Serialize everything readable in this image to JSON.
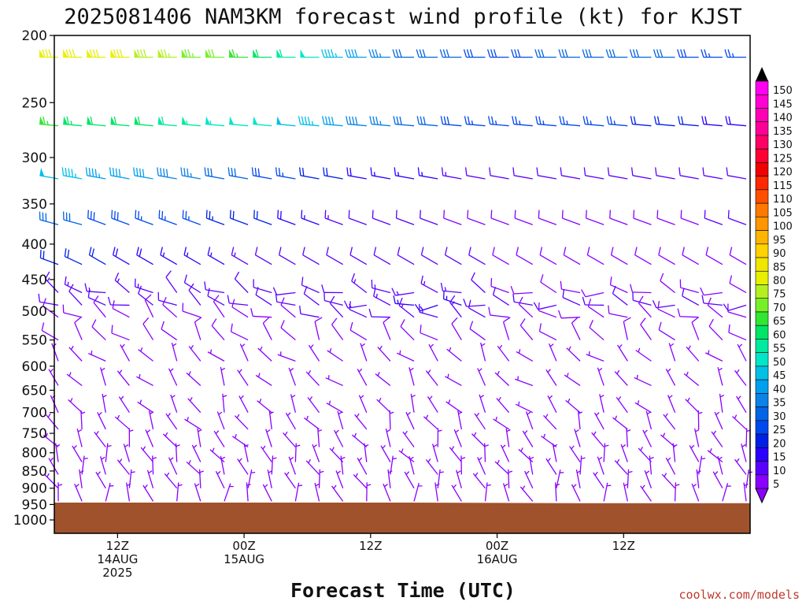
{
  "chart_data": {
    "type": "wind_barb_time_height",
    "title": "2025081406 NAM3KM forecast wind profile (kt) for KJST",
    "xlabel": "Forecast Time (UTC)",
    "ylabel": "",
    "credit": "coolwx.com/models",
    "y_axis": {
      "units": "hPa",
      "range": [
        1000,
        200
      ],
      "ticks": [
        200,
        250,
        300,
        350,
        400,
        450,
        500,
        550,
        600,
        650,
        700,
        750,
        800,
        850,
        900,
        950,
        1000
      ]
    },
    "x_axis": {
      "range": [
        "2025-08-14T06Z",
        "2025-08-16T12Z"
      ],
      "ticks": [
        {
          "time": "2025-08-14T12Z",
          "lines": [
            "12Z",
            "14AUG",
            "2025"
          ]
        },
        {
          "time": "2025-08-15T00Z",
          "lines": [
            "00Z",
            "15AUG"
          ]
        },
        {
          "time": "2025-08-15T12Z",
          "lines": [
            "12Z"
          ]
        },
        {
          "time": "2025-08-16T00Z",
          "lines": [
            "00Z",
            "16AUG"
          ]
        },
        {
          "time": "2025-08-16T12Z",
          "lines": [
            "12Z"
          ]
        }
      ]
    },
    "colorbar": {
      "units": "kt",
      "labels": [
        5,
        10,
        15,
        20,
        25,
        30,
        35,
        40,
        45,
        50,
        55,
        60,
        65,
        70,
        75,
        80,
        85,
        90,
        95,
        100,
        105,
        110,
        115,
        120,
        125,
        130,
        135,
        140,
        145,
        150
      ],
      "colors": [
        "#8a00ff",
        "#5a00ff",
        "#2a00ff",
        "#0020e6",
        "#0048f0",
        "#0064e6",
        "#0a82e8",
        "#00a0f0",
        "#00c0e6",
        "#00e6c8",
        "#00eaa0",
        "#00e664",
        "#32e632",
        "#78f028",
        "#b4f020",
        "#e6f000",
        "#f0e600",
        "#ffd200",
        "#ffb400",
        "#ff9600",
        "#ff7800",
        "#ff5000",
        "#ff2800",
        "#f00000",
        "#ff0032",
        "#ff0064",
        "#ff0096",
        "#ff00b4",
        "#ff00d2",
        "#ff00f0"
      ]
    },
    "wind_profile": {
      "note_levels_hpa": [
        215,
        270,
        322,
        375,
        428,
        470,
        490,
        510,
        550,
        590,
        640,
        700,
        740,
        785,
        825,
        860,
        900,
        940,
        1000
      ],
      "levels": [
        {
          "p": 215,
          "speed": [
            82,
            82,
            82,
            80,
            78,
            76,
            74,
            70,
            66,
            62,
            58,
            50,
            45,
            40,
            35,
            32,
            30,
            30,
            28,
            28,
            28,
            30,
            30,
            30,
            32,
            32,
            30,
            28,
            25,
            25
          ],
          "dir": [
            270,
            270,
            270,
            270,
            270,
            270,
            270,
            270,
            270,
            270,
            270,
            270,
            270,
            270,
            270,
            270,
            270,
            270,
            270,
            270,
            270,
            270,
            270,
            270,
            270,
            270,
            270,
            270,
            270,
            270
          ]
        },
        {
          "p": 270,
          "speed": [
            66,
            64,
            62,
            62,
            60,
            58,
            56,
            54,
            52,
            50,
            48,
            45,
            40,
            38,
            35,
            32,
            30,
            28,
            26,
            25,
            25,
            25,
            25,
            25,
            25,
            22,
            20,
            20,
            18,
            18
          ],
          "dir": [
            275,
            275,
            275,
            275,
            275,
            275,
            275,
            275,
            275,
            275,
            275,
            275,
            275,
            275,
            275,
            275,
            275,
            275,
            275,
            275,
            275,
            275,
            275,
            275,
            275,
            275,
            275,
            275,
            275,
            275
          ]
        },
        {
          "p": 322,
          "speed": [
            48,
            46,
            44,
            42,
            40,
            38,
            35,
            32,
            30,
            28,
            26,
            22,
            20,
            18,
            16,
            15,
            15,
            14,
            12,
            12,
            12,
            10,
            10,
            10,
            10,
            10,
            10,
            10,
            10,
            10
          ],
          "dir": [
            280,
            280,
            280,
            280,
            280,
            280,
            280,
            280,
            280,
            280,
            280,
            280,
            280,
            280,
            280,
            280,
            280,
            280,
            280,
            280,
            280,
            280,
            280,
            280,
            280,
            280,
            280,
            280,
            280,
            280
          ]
        },
        {
          "p": 375,
          "speed": [
            32,
            30,
            28,
            28,
            26,
            25,
            25,
            24,
            22,
            20,
            18,
            16,
            14,
            12,
            10,
            10,
            10,
            8,
            8,
            8,
            8,
            8,
            8,
            8,
            8,
            8,
            8,
            8,
            10,
            10
          ],
          "dir": [
            285,
            285,
            290,
            290,
            290,
            290,
            290,
            290,
            290,
            290,
            290,
            290,
            290,
            290,
            290,
            290,
            290,
            290,
            290,
            290,
            290,
            290,
            290,
            290,
            290,
            290,
            290,
            290,
            290,
            290
          ]
        },
        {
          "p": 428,
          "speed": [
            22,
            20,
            20,
            18,
            18,
            16,
            16,
            15,
            14,
            12,
            12,
            10,
            10,
            10,
            10,
            10,
            10,
            10,
            10,
            8,
            8,
            8,
            8,
            8,
            8,
            8,
            8,
            8,
            8,
            8
          ],
          "dir": [
            290,
            295,
            300,
            300,
            300,
            300,
            300,
            300,
            300,
            300,
            300,
            300,
            300,
            300,
            300,
            300,
            300,
            300,
            300,
            300,
            300,
            300,
            300,
            300,
            300,
            300,
            300,
            300,
            300,
            300
          ]
        },
        {
          "p": 490,
          "speed": [
            10,
            10,
            10,
            10,
            10,
            10,
            10,
            10,
            10,
            10,
            10,
            12,
            12,
            14,
            14,
            15,
            15,
            15,
            12,
            10,
            10,
            10,
            10,
            10,
            10,
            10,
            10,
            10,
            10,
            10
          ],
          "dir": [
            300,
            300,
            300,
            300,
            300,
            300,
            300,
            300,
            300,
            290,
            290,
            280,
            280,
            280,
            280,
            280,
            280,
            280,
            280,
            280,
            280,
            280,
            280,
            280,
            280,
            280,
            280,
            280,
            280,
            280
          ]
        },
        {
          "p": 550,
          "speed": [
            8,
            8,
            8,
            8,
            8,
            8,
            8,
            8,
            8,
            8,
            8,
            8,
            8,
            8,
            8,
            8,
            8,
            8,
            8,
            8,
            8,
            8,
            8,
            8,
            8,
            8,
            8,
            8,
            8,
            8
          ],
          "dir": [
            320,
            320,
            320,
            320,
            320,
            320,
            320,
            320,
            320,
            320,
            320,
            320,
            320,
            320,
            320,
            320,
            320,
            320,
            320,
            320,
            320,
            320,
            320,
            320,
            320,
            320,
            320,
            320,
            320,
            320
          ]
        },
        {
          "p": 640,
          "speed": [
            6,
            6,
            6,
            6,
            6,
            6,
            6,
            6,
            6,
            6,
            6,
            6,
            6,
            6,
            6,
            6,
            6,
            6,
            6,
            6,
            6,
            6,
            6,
            6,
            6,
            6,
            6,
            6,
            6,
            6
          ],
          "dir": [
            320,
            320,
            320,
            320,
            320,
            320,
            320,
            320,
            320,
            320,
            320,
            320,
            320,
            320,
            320,
            320,
            320,
            320,
            320,
            320,
            320,
            320,
            320,
            320,
            320,
            320,
            320,
            320,
            320,
            320
          ]
        },
        {
          "p": 740,
          "speed": [
            5,
            5,
            5,
            5,
            5,
            5,
            5,
            5,
            5,
            5,
            5,
            5,
            5,
            5,
            5,
            5,
            5,
            5,
            5,
            5,
            5,
            5,
            5,
            5,
            5,
            5,
            5,
            5,
            5,
            5
          ],
          "dir": [
            330,
            330,
            330,
            330,
            330,
            330,
            330,
            330,
            330,
            330,
            330,
            330,
            330,
            330,
            330,
            330,
            330,
            330,
            330,
            330,
            330,
            330,
            330,
            330,
            330,
            330,
            330,
            330,
            330,
            330
          ]
        },
        {
          "p": 860,
          "speed": [
            5,
            5,
            5,
            5,
            5,
            5,
            5,
            5,
            5,
            5,
            5,
            5,
            5,
            5,
            5,
            5,
            5,
            5,
            5,
            5,
            5,
            5,
            5,
            5,
            5,
            5,
            5,
            5,
            5,
            5
          ],
          "dir": [
            340,
            340,
            340,
            340,
            340,
            340,
            340,
            340,
            340,
            340,
            340,
            340,
            340,
            340,
            340,
            340,
            340,
            340,
            340,
            340,
            340,
            340,
            340,
            340,
            340,
            340,
            340,
            340,
            340,
            340
          ]
        },
        {
          "p": 940,
          "speed": [
            5,
            5,
            5,
            5,
            5,
            5,
            5,
            5,
            5,
            5,
            5,
            5,
            5,
            5,
            5,
            5,
            5,
            5,
            5,
            5,
            5,
            5,
            5,
            5,
            5,
            5,
            5,
            5,
            5,
            5
          ],
          "dir": [
            350,
            350,
            350,
            350,
            350,
            350,
            350,
            350,
            350,
            350,
            350,
            350,
            350,
            350,
            350,
            350,
            350,
            350,
            350,
            350,
            350,
            350,
            350,
            350,
            350,
            350,
            350,
            350,
            350,
            350
          ]
        },
        {
          "p": 1000,
          "speed": [
            8,
            8,
            8,
            8,
            8,
            8,
            8,
            8,
            8,
            8,
            8,
            8,
            8,
            8,
            8,
            8,
            8,
            8,
            8,
            8,
            8,
            8,
            8,
            8,
            8,
            8,
            8,
            8,
            8,
            8
          ],
          "dir": [
            330,
            330,
            330,
            330,
            330,
            330,
            330,
            330,
            330,
            330,
            330,
            330,
            330,
            330,
            330,
            330,
            330,
            330,
            330,
            330,
            330,
            330,
            330,
            330,
            330,
            330,
            330,
            330,
            330,
            330
          ]
        }
      ]
    },
    "terrain": {
      "color": "#a0522d",
      "surface_pressure_hpa": [
        944,
        944,
        944,
        946,
        946
      ]
    }
  }
}
